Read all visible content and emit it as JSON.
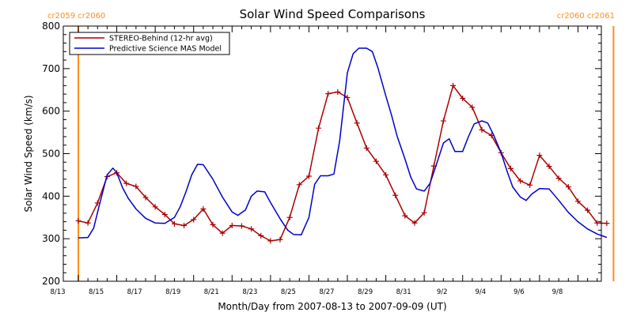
{
  "chart_data": {
    "type": "line",
    "title": "Solar Wind Speed Comparisons",
    "xlabel": "Month/Day from 2007-08-13 to 2007-09-09 (UT)",
    "ylabel": "Solar Wind Speed (km/s)",
    "x_range_days": [
      0,
      27.8
    ],
    "ylim": [
      200,
      800
    ],
    "y_ticks": [
      200,
      300,
      400,
      500,
      600,
      700,
      800
    ],
    "x_ticks": [
      {
        "day": 0,
        "label": "8/13"
      },
      {
        "day": 2,
        "label": "8/15"
      },
      {
        "day": 4,
        "label": "8/17"
      },
      {
        "day": 6,
        "label": "8/19"
      },
      {
        "day": 8,
        "label": "8/21"
      },
      {
        "day": 10,
        "label": "8/23"
      },
      {
        "day": 12,
        "label": "8/25"
      },
      {
        "day": 14,
        "label": "8/27"
      },
      {
        "day": 16,
        "label": "8/29"
      },
      {
        "day": 18,
        "label": "8/31"
      },
      {
        "day": 20,
        "label": "9/2"
      },
      {
        "day": 22,
        "label": "9/4"
      },
      {
        "day": 24,
        "label": "9/6"
      },
      {
        "day": 26,
        "label": "9/8"
      }
    ],
    "legend": {
      "placement": "top-left",
      "boxed": true
    },
    "series": [
      {
        "name": "STEREO-Behind (12-hr avg)",
        "color": "#aa0000",
        "marker": "plus",
        "x": [
          0.0,
          0.5,
          1.0,
          1.5,
          2.0,
          2.5,
          3.0,
          3.5,
          4.0,
          4.5,
          5.0,
          5.5,
          6.0,
          6.5,
          7.0,
          7.5,
          8.0,
          8.5,
          9.0,
          9.5,
          10.0,
          10.5,
          11.0,
          11.5,
          12.0,
          12.5,
          13.0,
          13.5,
          14.0,
          14.5,
          15.0,
          15.5,
          16.0,
          16.5,
          17.0,
          17.5,
          18.0,
          18.5,
          19.0,
          19.5,
          20.0,
          20.5,
          21.0,
          21.5,
          22.0,
          22.5,
          23.0,
          23.5,
          24.0,
          24.5,
          25.0,
          25.5,
          26.0,
          26.5,
          27.0,
          27.5
        ],
        "values": [
          342,
          337,
          384,
          446,
          455,
          430,
          423,
          397,
          375,
          357,
          335,
          331,
          345,
          370,
          333,
          313,
          331,
          330,
          323,
          307,
          295,
          298,
          350,
          427,
          447,
          560,
          641,
          645,
          632,
          572,
          513,
          482,
          450,
          402,
          354,
          337,
          361,
          471,
          577,
          660,
          630,
          609,
          556,
          543,
          502,
          465,
          436,
          426,
          496,
          470,
          442,
          422,
          388,
          367,
          337,
          336
        ]
      },
      {
        "name": "Predictive Science MAS Model",
        "color": "#0000cc",
        "marker": "none",
        "x": [
          0.0,
          0.5,
          0.8,
          1.1,
          1.5,
          1.8,
          2.0,
          2.3,
          2.6,
          3.0,
          3.5,
          4.0,
          4.5,
          5.0,
          5.3,
          5.6,
          5.9,
          6.2,
          6.5,
          7.0,
          7.5,
          8.0,
          8.3,
          8.7,
          9.0,
          9.3,
          9.7,
          10.0,
          10.5,
          10.9,
          11.2,
          11.6,
          12.0,
          12.3,
          12.6,
          13.0,
          13.3,
          13.6,
          14.0,
          14.3,
          14.6,
          15.0,
          15.3,
          15.6,
          16.0,
          16.3,
          16.6,
          17.0,
          17.3,
          17.6,
          18.0,
          18.3,
          18.6,
          19.0,
          19.3,
          19.6,
          20.0,
          20.3,
          20.6,
          21.0,
          21.3,
          21.6,
          22.0,
          22.3,
          22.6,
          23.0,
          23.3,
          23.6,
          24.0,
          24.5,
          25.0,
          25.5,
          26.0,
          26.5,
          27.0,
          27.5
        ],
        "values": [
          302,
          303,
          325,
          380,
          450,
          466,
          455,
          420,
          395,
          370,
          348,
          337,
          336,
          350,
          375,
          410,
          450,
          475,
          474,
          440,
          398,
          363,
          355,
          368,
          400,
          412,
          410,
          385,
          347,
          320,
          310,
          309,
          350,
          428,
          448,
          448,
          452,
          530,
          690,
          735,
          748,
          748,
          740,
          700,
          636,
          590,
          540,
          487,
          445,
          417,
          412,
          430,
          470,
          525,
          535,
          505,
          505,
          540,
          570,
          577,
          572,
          545,
          502,
          460,
          422,
          398,
          390,
          405,
          418,
          417,
          390,
          362,
          340,
          323,
          311,
          303
        ]
      }
    ],
    "annotations": [
      {
        "text": "cr2059 cr2060",
        "position": "top-left"
      },
      {
        "text": "cr2060 cr2061",
        "position": "top-right"
      }
    ],
    "vertical_markers": [
      {
        "name": "left-carrington-marker",
        "color": "#ff8c1a"
      },
      {
        "name": "right-carrington-marker",
        "color": "#ff8c1a"
      }
    ],
    "axis_color": "#000000",
    "grid": false
  }
}
